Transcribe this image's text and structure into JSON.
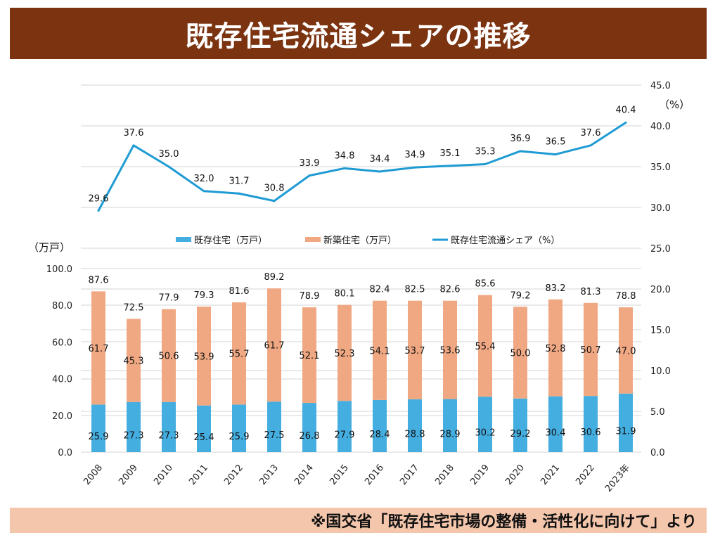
{
  "header": {
    "title": "既存住宅流通シェアの推移"
  },
  "footer": {
    "source": "※国交省「既存住宅市場の整備・活性化に向けて」より"
  },
  "chart_data": {
    "type": "bar",
    "title": "既存住宅流通シェアの推移",
    "categories": [
      "2008",
      "2009",
      "2010",
      "2011",
      "2012",
      "2013",
      "2014",
      "2015",
      "2016",
      "2017",
      "2018",
      "2019",
      "2020",
      "2021",
      "2022",
      "2023年"
    ],
    "series": [
      {
        "name": "既存住宅（万戸）",
        "type": "bar",
        "stacked": true,
        "axis": "left",
        "color": "#45aee0",
        "values": [
          25.9,
          27.3,
          27.3,
          25.4,
          25.9,
          27.5,
          26.8,
          27.9,
          28.4,
          28.8,
          28.9,
          30.2,
          29.2,
          30.4,
          30.6,
          31.9
        ]
      },
      {
        "name": "新築住宅（万戸）",
        "type": "bar",
        "stacked": true,
        "axis": "left",
        "color": "#f0a883",
        "values": [
          61.7,
          45.3,
          50.6,
          53.9,
          55.7,
          61.7,
          52.1,
          52.3,
          54.1,
          53.7,
          53.6,
          55.4,
          50.0,
          52.8,
          50.7,
          47.0
        ]
      },
      {
        "name": "既存住宅流通シェア（%）",
        "type": "line",
        "axis": "right",
        "color": "#1f9bd3",
        "values": [
          29.6,
          37.6,
          35.0,
          32.0,
          31.7,
          30.8,
          33.9,
          34.8,
          34.4,
          34.9,
          35.1,
          35.3,
          36.9,
          36.5,
          37.6,
          40.4
        ]
      }
    ],
    "totals": [
      87.6,
      72.5,
      77.9,
      79.3,
      81.6,
      89.2,
      78.9,
      80.1,
      82.4,
      82.5,
      82.6,
      85.6,
      79.2,
      83.2,
      81.3,
      78.8
    ],
    "left_axis": {
      "label": "（万戸）",
      "ylim": [
        0,
        100
      ],
      "ticks": [
        "0.0",
        "20.0",
        "40.0",
        "60.0",
        "80.0",
        "100.0"
      ],
      "tick_values": [
        0,
        20,
        40,
        60,
        80,
        100
      ]
    },
    "right_axis": {
      "label": "（%）",
      "ylim": [
        0,
        45
      ],
      "ticks": [
        "0.0",
        "5.0",
        "10.0",
        "15.0",
        "20.0",
        "25.0",
        "30.0",
        "35.0",
        "40.0",
        "45.0"
      ],
      "tick_values": [
        0,
        5,
        10,
        15,
        20,
        25,
        30,
        35,
        40,
        45
      ]
    },
    "xlabel": "",
    "grid": true,
    "legend_position": "middle-center"
  }
}
